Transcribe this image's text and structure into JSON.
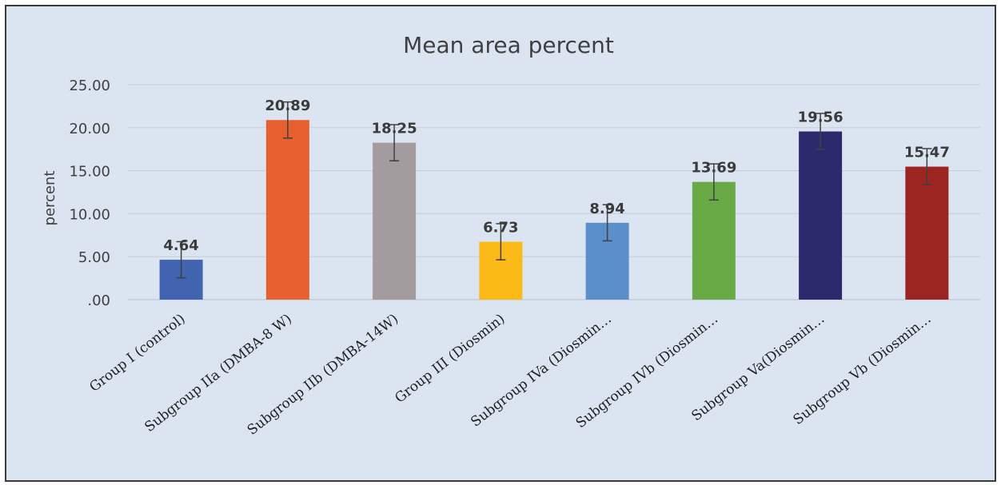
{
  "colors": {
    "background": "#dbe5f1",
    "gridline": "#c7cdd6",
    "axis_text": "#404040",
    "label_text": "#3b3b3b",
    "error_bar": "#404040"
  },
  "chart_data": {
    "type": "bar",
    "title": "Mean area percent",
    "xlabel": "",
    "ylabel": "percent",
    "ylim": [
      0,
      25
    ],
    "yticks": [
      0,
      5,
      10,
      15,
      20,
      25
    ],
    "ytick_labels": [
      ".00",
      "5.00",
      "10.00",
      "15.00",
      "20.00",
      "25.00"
    ],
    "grid": true,
    "legend": "none",
    "categories": [
      "Group I (control)",
      "Subgroup IIa (DMBA-8 W)",
      "Subgroup IIb (DMBA-14W)",
      "Group III (Diosmin)",
      "Subgroup IVa (Diosmin…",
      "Subgroup IVb (Diosmin…",
      "Subgroup Va(Diosmin…",
      "Subgroup Vb (Diosmin…"
    ],
    "values": [
      4.64,
      20.89,
      18.25,
      6.73,
      8.94,
      13.69,
      19.56,
      15.47
    ],
    "value_labels": [
      "4.64",
      "20.89",
      "18.25",
      "6.73",
      "8.94",
      "13.69",
      "19.56",
      "15.47"
    ],
    "error": [
      2.1,
      2.1,
      2.1,
      2.1,
      2.1,
      2.1,
      2.1,
      2.1
    ],
    "bar_colors": [
      "#4263b0",
      "#e96030",
      "#a39b9e",
      "#fbba17",
      "#5b8fcc",
      "#6aaa46",
      "#2a2a6d",
      "#9c2521"
    ]
  }
}
